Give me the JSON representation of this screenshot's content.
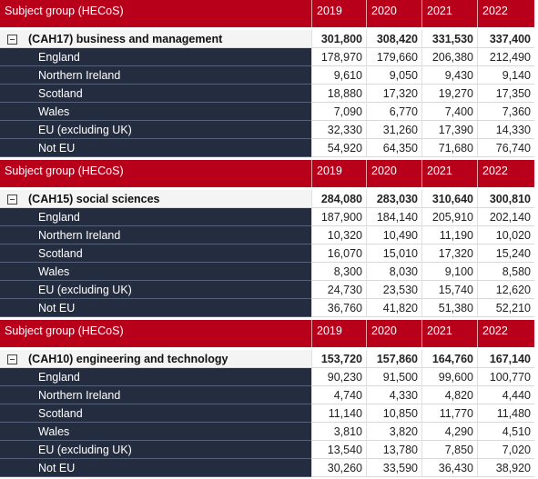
{
  "blocks": [
    {
      "header": [
        "Subject group (HECoS)",
        "2019",
        "2020",
        "2021",
        "2022"
      ],
      "group": {
        "label": "(CAH17) business and management",
        "values": [
          "301,800",
          "308,420",
          "331,530",
          "337,400"
        ]
      },
      "rows": [
        {
          "label": "England",
          "values": [
            "178,970",
            "179,660",
            "206,380",
            "212,490"
          ]
        },
        {
          "label": "Northern Ireland",
          "values": [
            "9,610",
            "9,050",
            "9,430",
            "9,140"
          ]
        },
        {
          "label": "Scotland",
          "values": [
            "18,880",
            "17,320",
            "19,270",
            "17,350"
          ]
        },
        {
          "label": "Wales",
          "values": [
            "7,090",
            "6,770",
            "7,400",
            "7,360"
          ]
        },
        {
          "label": "EU (excluding UK)",
          "values": [
            "32,330",
            "31,260",
            "17,390",
            "14,330"
          ]
        },
        {
          "label": "Not EU",
          "values": [
            "54,920",
            "64,350",
            "71,680",
            "76,740"
          ]
        }
      ]
    },
    {
      "header": [
        "Subject group (HECoS)",
        "2019",
        "2020",
        "2021",
        "2022"
      ],
      "group": {
        "label": "(CAH15) social sciences",
        "values": [
          "284,080",
          "283,030",
          "310,640",
          "300,810"
        ]
      },
      "rows": [
        {
          "label": "England",
          "values": [
            "187,900",
            "184,140",
            "205,910",
            "202,140"
          ]
        },
        {
          "label": "Northern Ireland",
          "values": [
            "10,320",
            "10,490",
            "11,190",
            "10,020"
          ]
        },
        {
          "label": "Scotland",
          "values": [
            "16,070",
            "15,010",
            "17,320",
            "15,240"
          ]
        },
        {
          "label": "Wales",
          "values": [
            "8,300",
            "8,030",
            "9,100",
            "8,580"
          ]
        },
        {
          "label": "EU (excluding UK)",
          "values": [
            "24,730",
            "23,530",
            "15,740",
            "12,620"
          ]
        },
        {
          "label": "Not EU",
          "values": [
            "36,760",
            "41,820",
            "51,380",
            "52,210"
          ]
        }
      ]
    },
    {
      "header": [
        "Subject group (HECoS)",
        "2019",
        "2020",
        "2021",
        "2022"
      ],
      "group": {
        "label": "(CAH10) engineering and technology",
        "values": [
          "153,720",
          "157,860",
          "164,760",
          "167,140"
        ]
      },
      "rows": [
        {
          "label": "England",
          "values": [
            "90,230",
            "91,500",
            "99,600",
            "100,770"
          ]
        },
        {
          "label": "Northern Ireland",
          "values": [
            "4,740",
            "4,330",
            "4,820",
            "4,440"
          ]
        },
        {
          "label": "Scotland",
          "values": [
            "11,140",
            "10,850",
            "11,770",
            "11,480"
          ]
        },
        {
          "label": "Wales",
          "values": [
            "3,810",
            "3,820",
            "4,290",
            "4,510"
          ]
        },
        {
          "label": "EU (excluding UK)",
          "values": [
            "13,540",
            "13,780",
            "7,850",
            "7,020"
          ]
        },
        {
          "label": "Not EU",
          "values": [
            "30,260",
            "33,590",
            "36,430",
            "38,920"
          ]
        }
      ]
    }
  ]
}
